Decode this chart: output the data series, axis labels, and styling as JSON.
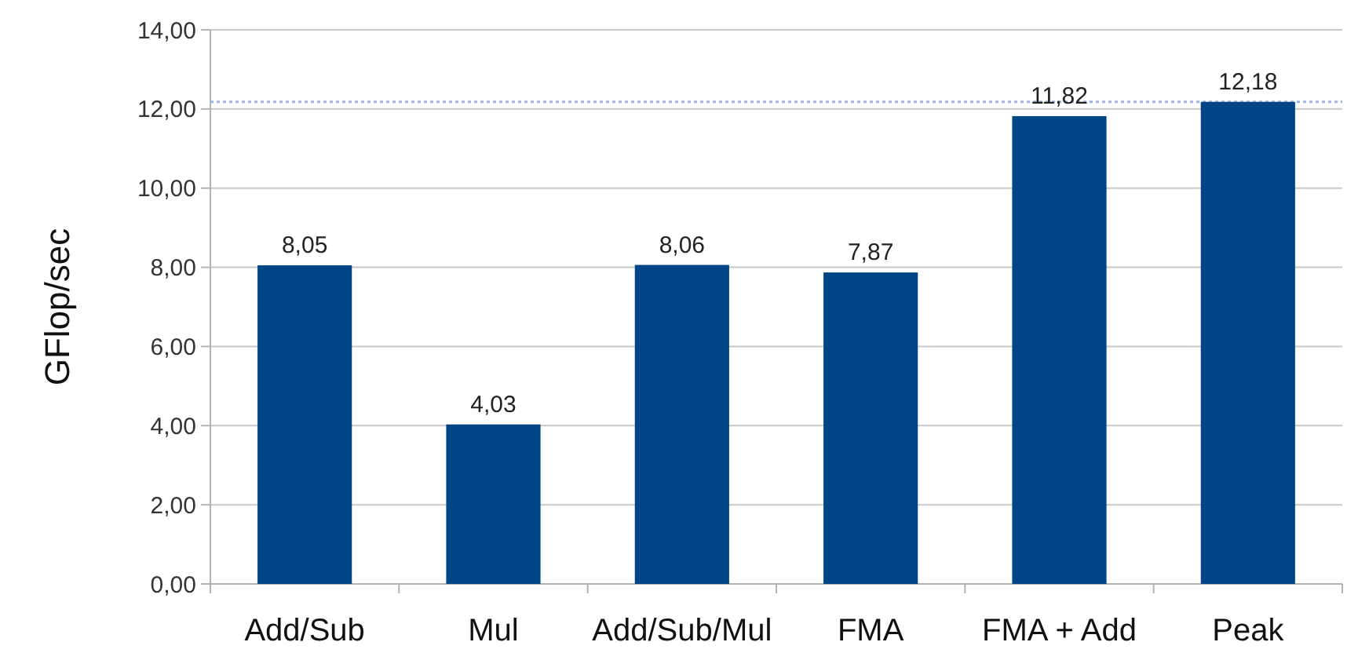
{
  "chart_data": {
    "type": "bar",
    "ylabel": "GFlop/sec",
    "categories": [
      "Add/Sub",
      "Mul",
      "Add/Sub/Mul",
      "FMA",
      "FMA + Add",
      "Peak"
    ],
    "values": [
      8.05,
      4.03,
      8.06,
      7.87,
      11.82,
      12.18
    ],
    "value_labels": [
      "8,05",
      "4,03",
      "8,06",
      "7,87",
      "11,82",
      "12,18"
    ],
    "color": "#004586",
    "ylim": [
      0,
      14
    ],
    "yticks": [
      {
        "value": 0,
        "label": "0,00"
      },
      {
        "value": 2,
        "label": "2,00"
      },
      {
        "value": 4,
        "label": "4,00"
      },
      {
        "value": 6,
        "label": "6,00"
      },
      {
        "value": 8,
        "label": "8,00"
      },
      {
        "value": 10,
        "label": "10,00"
      },
      {
        "value": 12,
        "label": "12,00"
      },
      {
        "value": 14,
        "label": "14,00"
      }
    ],
    "ref_lines": [
      {
        "axis": "y",
        "value": 12.18,
        "color": "#9db4e0",
        "line_style": "dotted"
      }
    ],
    "grid": "y"
  }
}
